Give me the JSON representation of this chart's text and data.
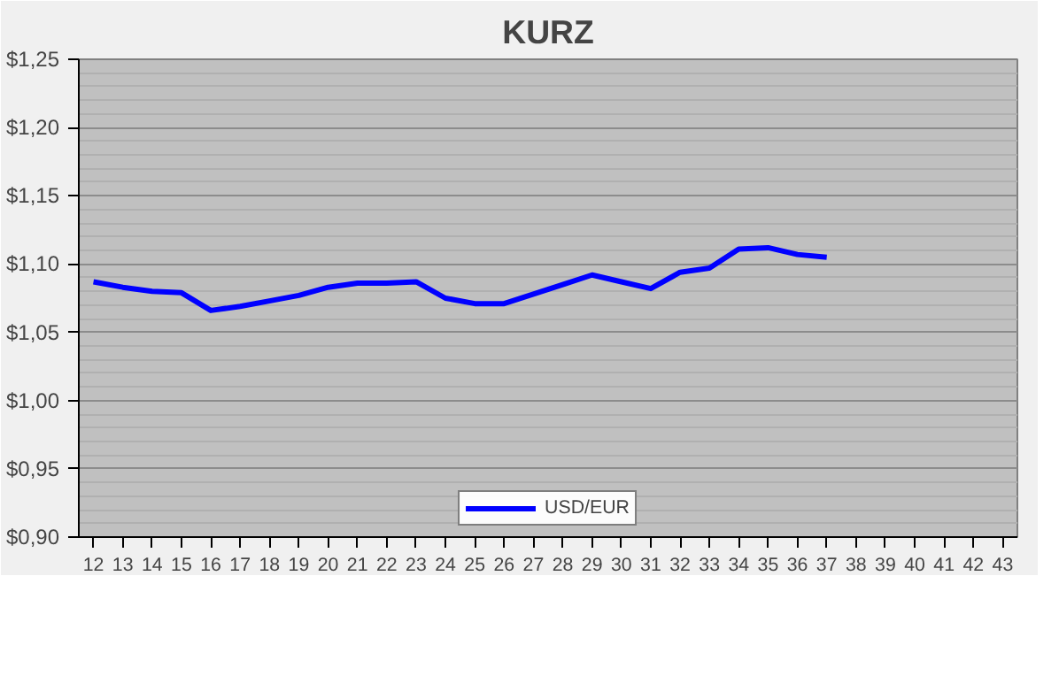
{
  "chart_data": {
    "type": "line",
    "title": "KURZ",
    "categories": [
      "12",
      "13",
      "14",
      "15",
      "16",
      "17",
      "18",
      "19",
      "20",
      "21",
      "22",
      "23",
      "24",
      "25",
      "26",
      "27",
      "28",
      "29",
      "30",
      "31",
      "32",
      "33",
      "34",
      "35",
      "36",
      "37",
      "38",
      "39",
      "40",
      "41",
      "42",
      "43"
    ],
    "series": [
      {
        "name": "USD/EUR",
        "color": "#0000ff",
        "values": [
          1.087,
          1.083,
          1.08,
          1.079,
          1.066,
          1.069,
          1.073,
          1.077,
          1.083,
          1.086,
          1.086,
          1.087,
          1.075,
          1.071,
          1.071,
          1.078,
          1.085,
          1.092,
          1.087,
          1.082,
          1.094,
          1.097,
          1.111,
          1.112,
          1.107,
          1.105,
          null,
          null,
          null,
          null,
          null,
          null
        ]
      }
    ],
    "ylim": [
      0.9,
      1.25
    ],
    "yticks": [
      {
        "value": 0.9,
        "label": "$0,90"
      },
      {
        "value": 0.95,
        "label": "$0,95"
      },
      {
        "value": 1.0,
        "label": "$1,00"
      },
      {
        "value": 1.05,
        "label": "$1,05"
      },
      {
        "value": 1.1,
        "label": "$1,10"
      },
      {
        "value": 1.15,
        "label": "$1,15"
      },
      {
        "value": 1.2,
        "label": "$1,20"
      },
      {
        "value": 1.25,
        "label": "$1,25"
      }
    ],
    "grid": "y",
    "legend": "bottom",
    "marker": "none",
    "line_style": "solid"
  }
}
